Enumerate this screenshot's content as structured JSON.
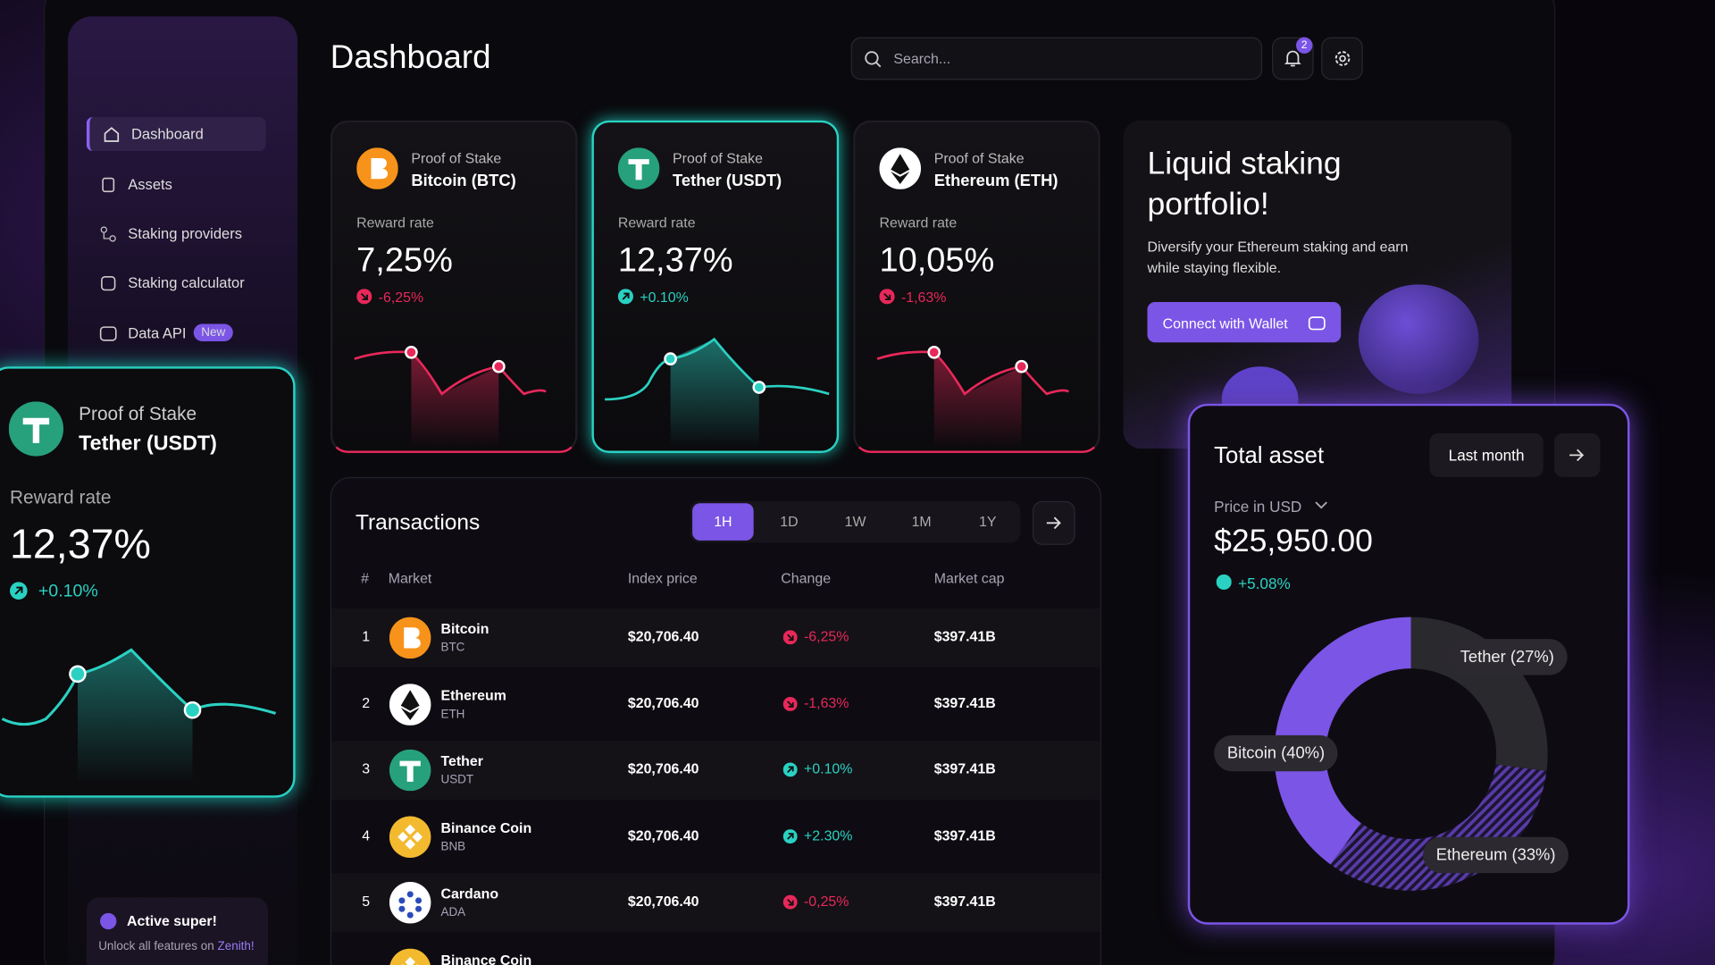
{
  "sidebar": {
    "menu": [
      "Dashboard",
      "Assets",
      "Staking providers",
      "Staking calculator",
      "Data API"
    ],
    "badge": "New",
    "promo": {
      "title": "Active super!",
      "text": "Unlock all features on",
      "brand": "Zenith!"
    }
  },
  "header": {
    "title": "Dashboard",
    "search": "Search...",
    "notifications": "2"
  },
  "cards": [
    {
      "kicker": "Proof of Stake",
      "name": "Bitcoin (BTC)",
      "rate_label": "Reward rate",
      "rate": "7,25%",
      "change": "-6,25%"
    },
    {
      "kicker": "Proof of Stake",
      "name": "Tether (USDT)",
      "rate_label": "Reward rate",
      "rate": "12,37%",
      "change": "+0.10%"
    },
    {
      "kicker": "Proof of Stake",
      "name": "Ethereum (ETH)",
      "rate_label": "Reward rate",
      "rate": "10,05%",
      "change": "-1,63%"
    }
  ],
  "floating_card": {
    "kicker": "Proof of Stake",
    "name": "Tether (USDT)",
    "rate_label": "Reward rate",
    "rate": "12,37%",
    "change": "+0.10%"
  },
  "promo": {
    "title": "Liquid staking portfolio!",
    "text": "Diversify your Ethereum staking and earn while staying flexible.",
    "button": "Connect with Wallet"
  },
  "transactions": {
    "title": "Transactions",
    "periods": [
      "1H",
      "1D",
      "1W",
      "1M",
      "1Y"
    ],
    "columns": [
      "#",
      "Market",
      "Index price",
      "Change",
      "Market cap"
    ],
    "rows": [
      [
        "1",
        "Bitcoin",
        "BTC",
        "$20,706.40",
        "-6,25%",
        "$397.41B"
      ],
      [
        "2",
        "Ethereum",
        "ETH",
        "$20,706.40",
        "-1,63%",
        "$397.41B"
      ],
      [
        "3",
        "Tether",
        "USDT",
        "$20,706.40",
        "+0.10%",
        "$397.41B"
      ],
      [
        "4",
        "Binance Coin",
        "BNB",
        "$20,706.40",
        "+2.30%",
        "$397.41B"
      ],
      [
        "5",
        "Cardano",
        "ADA",
        "$20,706.40",
        "-0,25%",
        "$397.41B"
      ]
    ],
    "partial_row": "Binance Coin"
  },
  "total_asset": {
    "title": "Total asset",
    "period": "Last month",
    "price_label": "Price in USD",
    "value": "$25,950.00",
    "change": "+5.08%",
    "segments": [
      {
        "name": "Tether",
        "value": 27,
        "label": "Tether (27%)",
        "color": "#2a2a2e"
      },
      {
        "name": "Ethereum",
        "value": 33,
        "label": "Ethereum (33%)",
        "color": "#5a3aa8"
      },
      {
        "name": "Bitcoin",
        "value": 40,
        "label": "Bitcoin (40%)",
        "color": "#7b55e6"
      }
    ]
  }
}
